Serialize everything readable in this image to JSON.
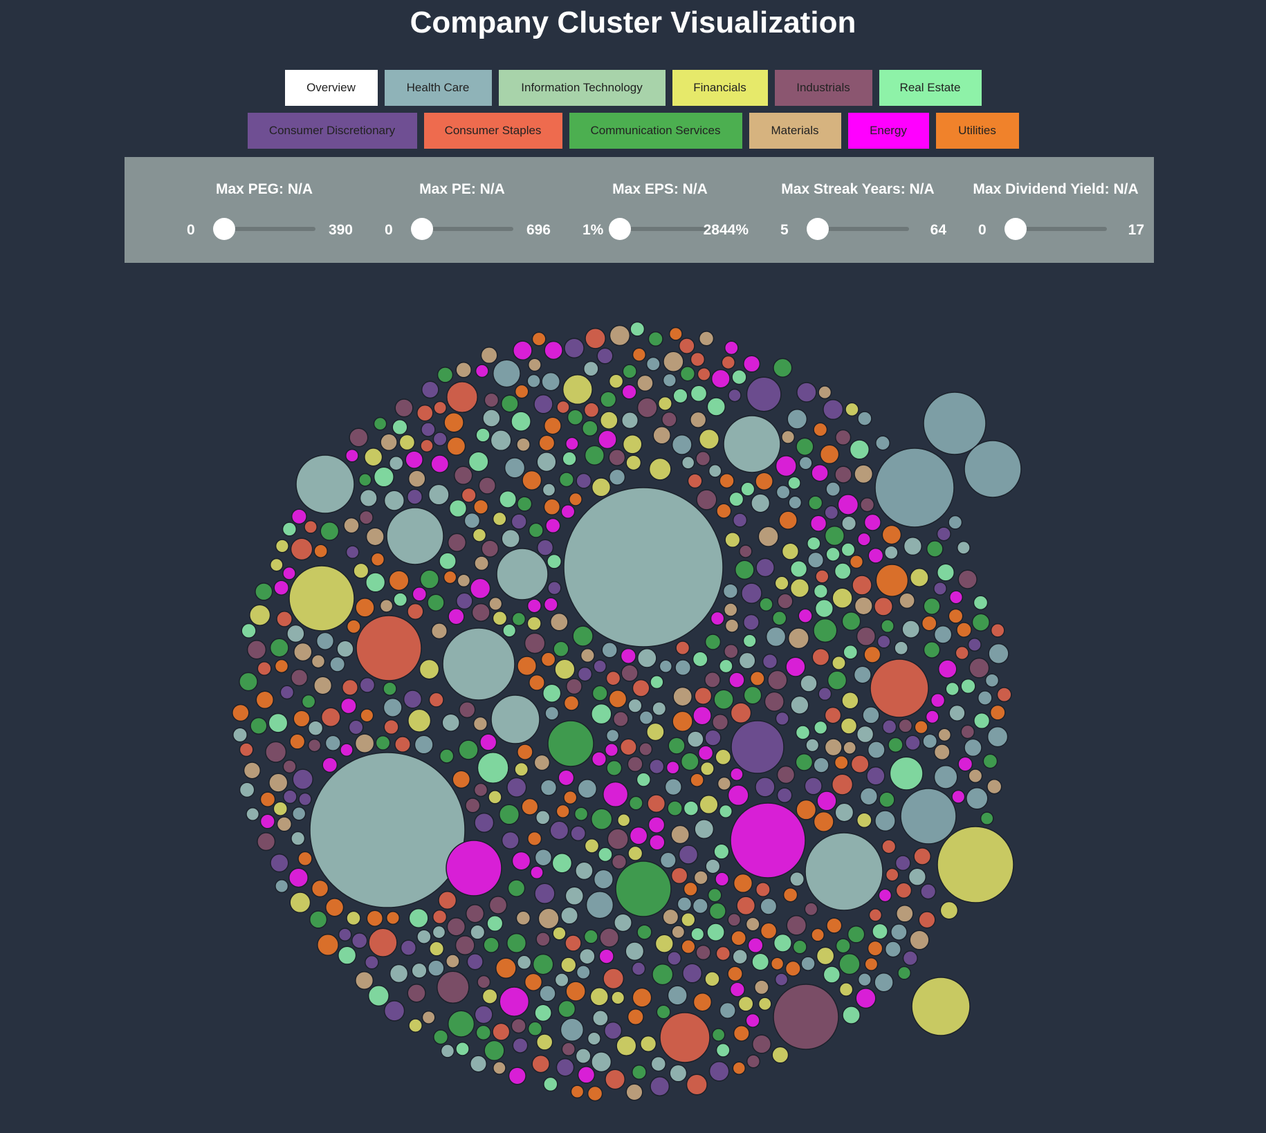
{
  "title": "Company Cluster Visualization",
  "sectors_row1": [
    {
      "label": "Overview",
      "color": "#ffffff"
    },
    {
      "label": "Health Care",
      "color": "#8fb3b8"
    },
    {
      "label": "Information Technology",
      "color": "#a8d3aa"
    },
    {
      "label": "Financials",
      "color": "#e6e96a"
    },
    {
      "label": "Industrials",
      "color": "#8b5670"
    },
    {
      "label": "Real Estate",
      "color": "#8ef2a8"
    }
  ],
  "sectors_row2": [
    {
      "label": "Consumer Discretionary",
      "color": "#6f4f93"
    },
    {
      "label": "Consumer Staples",
      "color": "#ee6b4e"
    },
    {
      "label": "Communication Services",
      "color": "#4caf50"
    },
    {
      "label": "Materials",
      "color": "#d6b37f"
    },
    {
      "label": "Energy",
      "color": "#ff00ff"
    },
    {
      "label": "Utilities",
      "color": "#f0822b"
    }
  ],
  "filters": [
    {
      "label": "Max PEG: N/A",
      "min": "0",
      "max": "390"
    },
    {
      "label": "Max PE: N/A",
      "min": "0",
      "max": "696"
    },
    {
      "label": "Max EPS: N/A",
      "min": "1%",
      "max": "2844%"
    },
    {
      "label": "Max Streak Years: N/A",
      "min": "5",
      "max": "64"
    },
    {
      "label": "Max Dividend Yield: N/A",
      "min": "0",
      "max": "17"
    }
  ],
  "bubble_colors": [
    "#8fb0ad",
    "#7d9ea5",
    "#c8c962",
    "#7a4d66",
    "#6b4c8e",
    "#cc5e4a",
    "#3f9a4e",
    "#b89c7a",
    "#d96f2a",
    "#d81fd6",
    "#7fd69e"
  ]
}
